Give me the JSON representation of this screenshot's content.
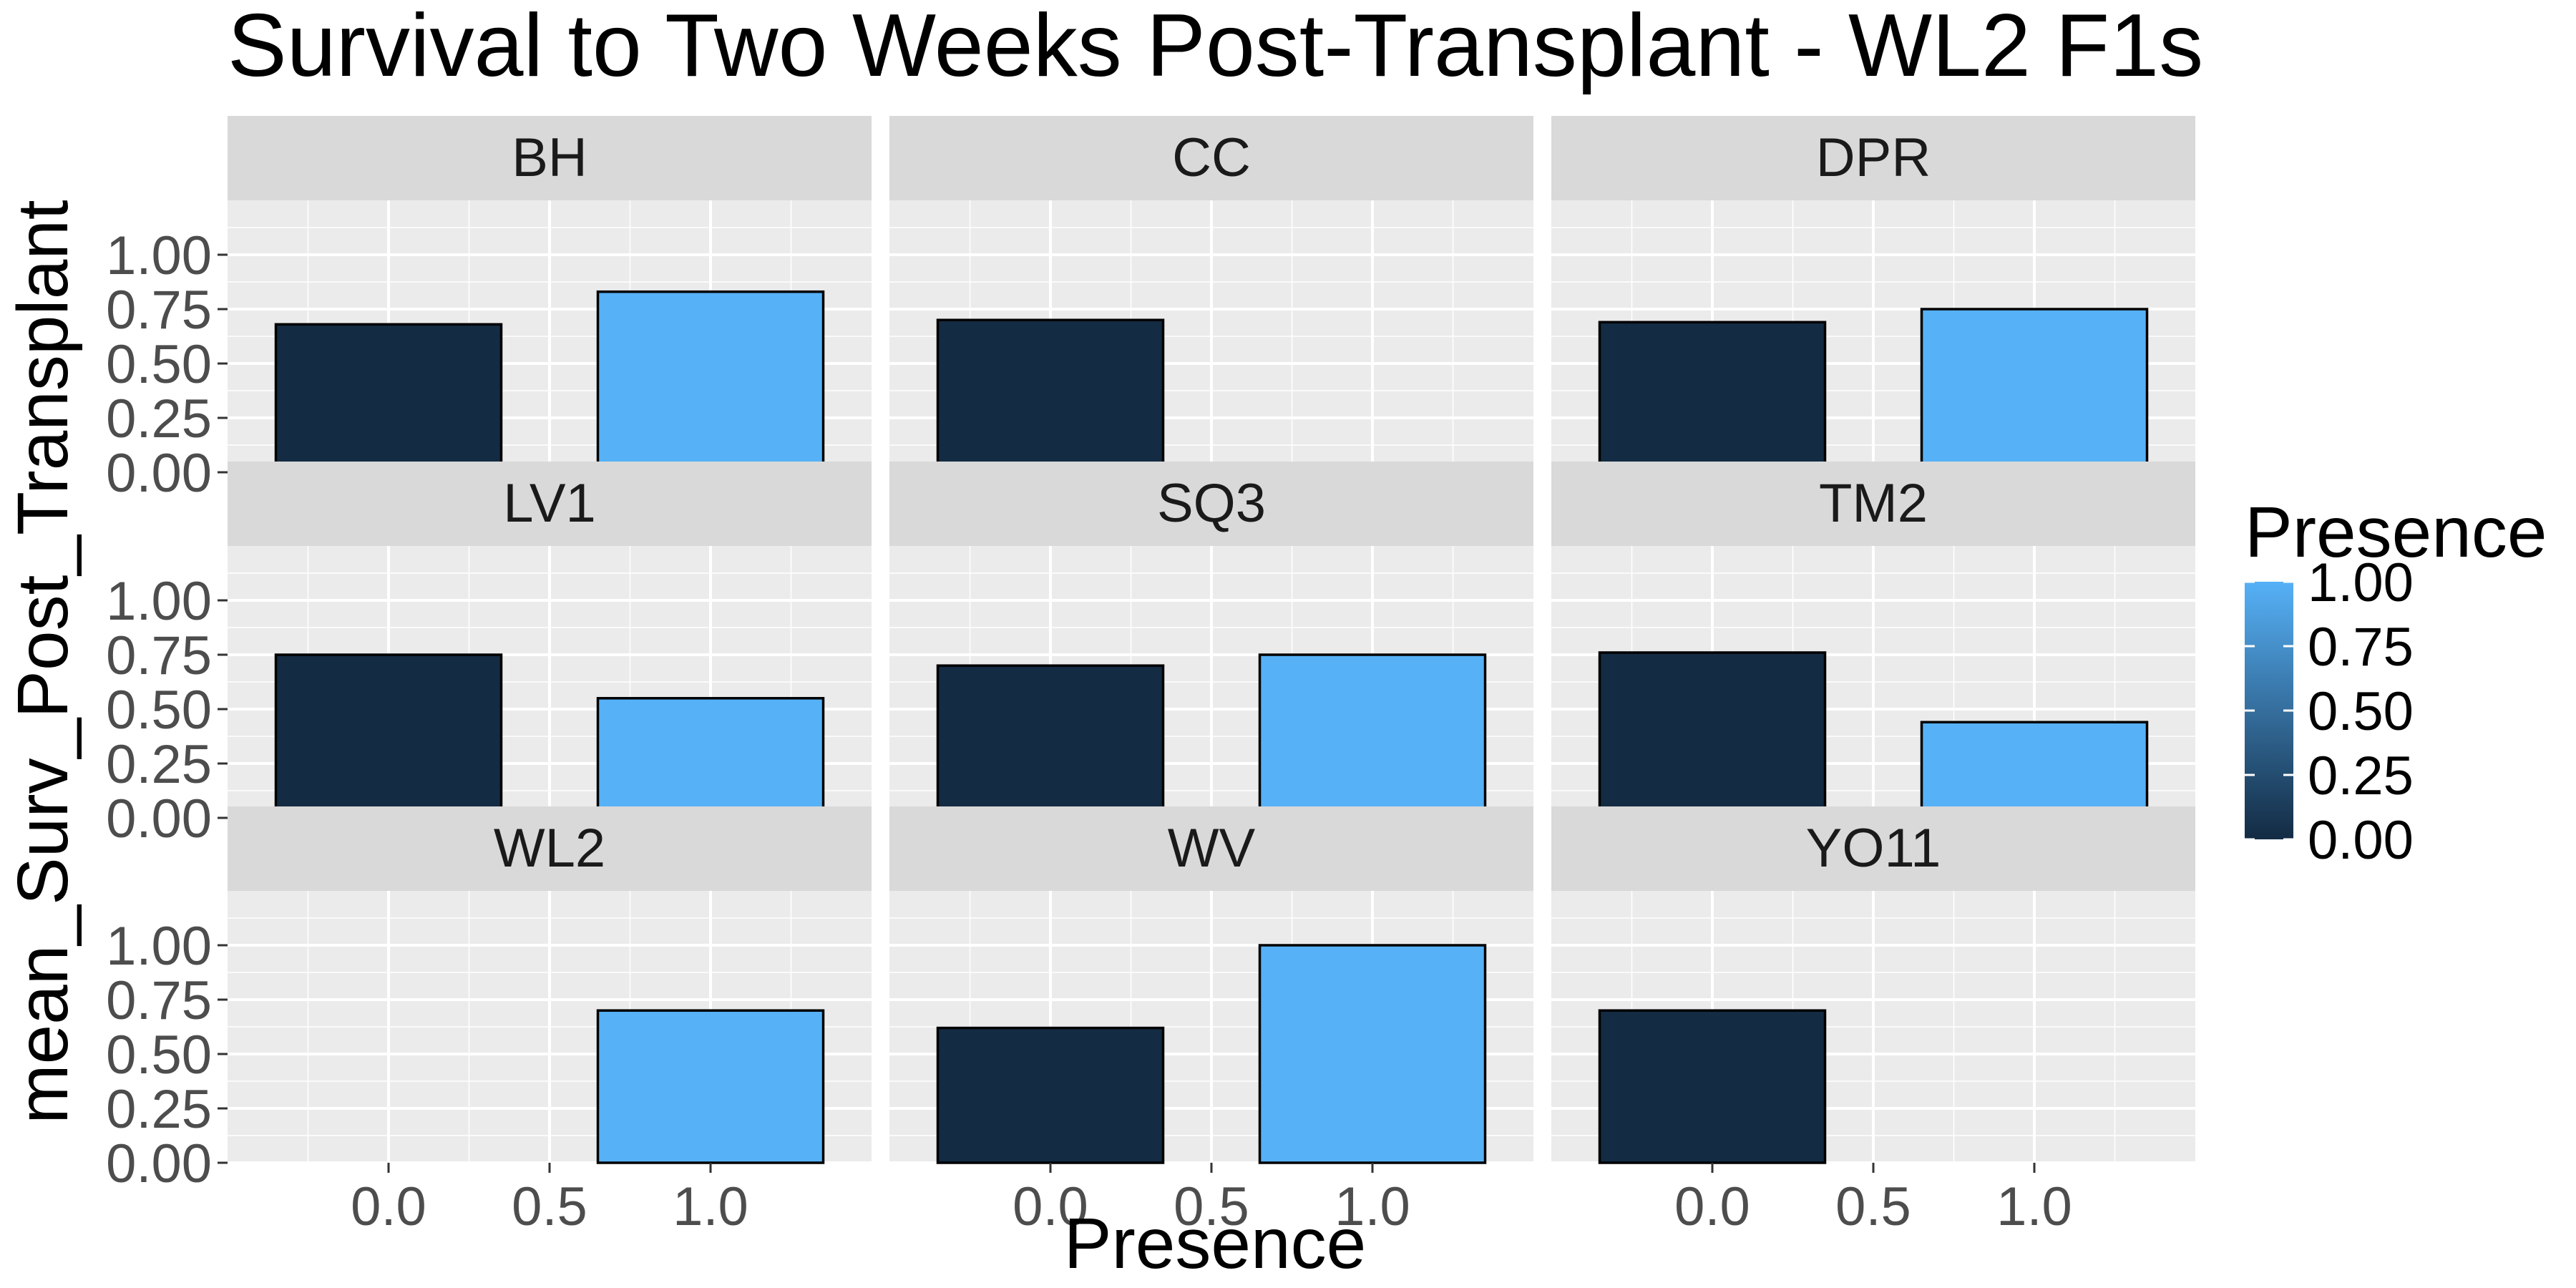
{
  "chart_data": {
    "type": "bar",
    "title": "Survival to Two Weeks Post-Transplant  - WL2 F1s",
    "xlabel": "Presence",
    "ylabel": "mean_Surv_Post_Transplant",
    "xlim": [
      -0.5,
      1.5
    ],
    "ylim": [
      0,
      1.25
    ],
    "x_ticks": [
      0.0,
      0.5,
      1.0
    ],
    "x_tick_labels": [
      "0.0",
      "0.5",
      "1.0"
    ],
    "y_ticks": [
      0.0,
      0.25,
      0.5,
      0.75,
      1.0
    ],
    "y_tick_labels": [
      "0.00",
      "0.25",
      "0.50",
      "0.75",
      "1.00"
    ],
    "bar_width": 0.7,
    "facet_layout": "3x3 grid",
    "facets": [
      {
        "label": "BH",
        "bars": [
          {
            "x": 0,
            "value": 0.68
          },
          {
            "x": 1,
            "value": 0.83
          }
        ]
      },
      {
        "label": "CC",
        "bars": [
          {
            "x": 0,
            "value": 0.7
          }
        ]
      },
      {
        "label": "DPR",
        "bars": [
          {
            "x": 0,
            "value": 0.69
          },
          {
            "x": 1,
            "value": 0.75
          }
        ]
      },
      {
        "label": "LV1",
        "bars": [
          {
            "x": 0,
            "value": 0.75
          },
          {
            "x": 1,
            "value": 0.55
          }
        ]
      },
      {
        "label": "SQ3",
        "bars": [
          {
            "x": 0,
            "value": 0.7
          },
          {
            "x": 1,
            "value": 0.75
          }
        ]
      },
      {
        "label": "TM2",
        "bars": [
          {
            "x": 0,
            "value": 0.76
          },
          {
            "x": 1,
            "value": 0.44
          }
        ]
      },
      {
        "label": "WL2",
        "bars": [
          {
            "x": 1,
            "value": 0.7
          }
        ]
      },
      {
        "label": "WV",
        "bars": [
          {
            "x": 0,
            "value": 0.62
          },
          {
            "x": 1,
            "value": 1.0
          }
        ]
      },
      {
        "label": "YO11",
        "bars": [
          {
            "x": 0,
            "value": 0.7
          }
        ]
      }
    ],
    "legend": {
      "title": "Presence",
      "placement": "right",
      "type": "colorbar",
      "labels": [
        "1.00",
        "0.75",
        "0.50",
        "0.25",
        "0.00"
      ],
      "range": [
        0,
        1
      ]
    },
    "colors": {
      "low": "#132B43",
      "high": "#56B1F7",
      "panel_bg": "#EBEBEB",
      "strip_bg": "#D9D9D9",
      "grid_major": "#FFFFFF",
      "bar_outline": "#000000"
    }
  }
}
